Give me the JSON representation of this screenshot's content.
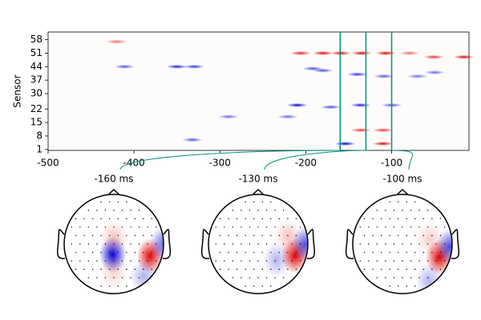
{
  "chart_data": {
    "type": "image",
    "ylabel": "Sensor",
    "xlim": [
      -500,
      -10
    ],
    "xticks": [
      -500,
      -400,
      -300,
      -200,
      -100
    ],
    "ylim": [
      0.5,
      62
    ],
    "yticks": [
      1,
      8,
      15,
      22,
      30,
      37,
      44,
      51,
      58
    ],
    "pos_color": "#e00000",
    "neg_color": "#0000d8",
    "line_color": "#00937a",
    "times": [
      -160,
      -130,
      -100
    ],
    "blobs": [
      {
        "x": -420,
        "y": 57,
        "value": 0.6
      },
      {
        "x": -411,
        "y": 44,
        "value": -0.7
      },
      {
        "x": -350,
        "y": 44,
        "value": -0.9
      },
      {
        "x": -330,
        "y": 44,
        "value": -0.8
      },
      {
        "x": -206,
        "y": 51,
        "value": 0.9
      },
      {
        "x": -180,
        "y": 51,
        "value": 1
      },
      {
        "x": -159,
        "y": 51,
        "value": 1
      },
      {
        "x": -135,
        "y": 51,
        "value": 1
      },
      {
        "x": -107,
        "y": 51,
        "value": 1
      },
      {
        "x": -79,
        "y": 51,
        "value": 0.6
      },
      {
        "x": -51,
        "y": 49,
        "value": 0.8
      },
      {
        "x": -16,
        "y": 49,
        "value": 1
      },
      {
        "x": -192,
        "y": 43,
        "value": -0.7
      },
      {
        "x": -180,
        "y": 42,
        "value": -0.7
      },
      {
        "x": -140,
        "y": 40,
        "value": -0.8
      },
      {
        "x": -109,
        "y": 39,
        "value": -0.7
      },
      {
        "x": -70,
        "y": 39,
        "value": -0.6
      },
      {
        "x": -50,
        "y": 41,
        "value": -0.6
      },
      {
        "x": -210,
        "y": 24,
        "value": -1
      },
      {
        "x": -171,
        "y": 23,
        "value": -0.7
      },
      {
        "x": -136,
        "y": 24,
        "value": -0.9
      },
      {
        "x": -100,
        "y": 24,
        "value": -0.7
      },
      {
        "x": -290,
        "y": 18,
        "value": -0.6
      },
      {
        "x": -221,
        "y": 18,
        "value": -0.6
      },
      {
        "x": -136,
        "y": 11,
        "value": 0.8
      },
      {
        "x": -110,
        "y": 11,
        "value": 0.8
      },
      {
        "x": -332,
        "y": 6,
        "value": -0.7
      },
      {
        "x": -154,
        "y": 4,
        "value": -1
      },
      {
        "x": -110,
        "y": 4,
        "value": 1
      }
    ],
    "topomaps": [
      {
        "title": "-160 ms",
        "blobs": [
          {
            "x": -0.02,
            "y": 0.21,
            "value": -1
          },
          {
            "x": 0.73,
            "y": 0.24,
            "value": 1
          },
          {
            "x": 1.0,
            "y": 0.0,
            "value": -0.6
          },
          {
            "x": 0.6,
            "y": 0.65,
            "value": -0.3
          },
          {
            "x": 0.0,
            "y": -0.12,
            "value": 0.25
          },
          {
            "x": 0.0,
            "y": 0.55,
            "value": 0.2
          }
        ]
      },
      {
        "title": "-130 ms",
        "blobs": [
          {
            "x": 0.74,
            "y": 0.24,
            "value": 1
          },
          {
            "x": 0.95,
            "y": 0.0,
            "value": -0.7
          },
          {
            "x": 0.37,
            "y": 0.32,
            "value": -0.3
          },
          {
            "x": 0.6,
            "y": -0.15,
            "value": 0.25
          }
        ]
      },
      {
        "title": "-100 ms",
        "blobs": [
          {
            "x": 0.74,
            "y": 0.27,
            "value": 1
          },
          {
            "x": 0.95,
            "y": 0.05,
            "value": -0.7
          },
          {
            "x": 0.53,
            "y": 0.73,
            "value": -0.3
          },
          {
            "x": 0.55,
            "y": -0.1,
            "value": 0.2
          }
        ]
      }
    ]
  }
}
